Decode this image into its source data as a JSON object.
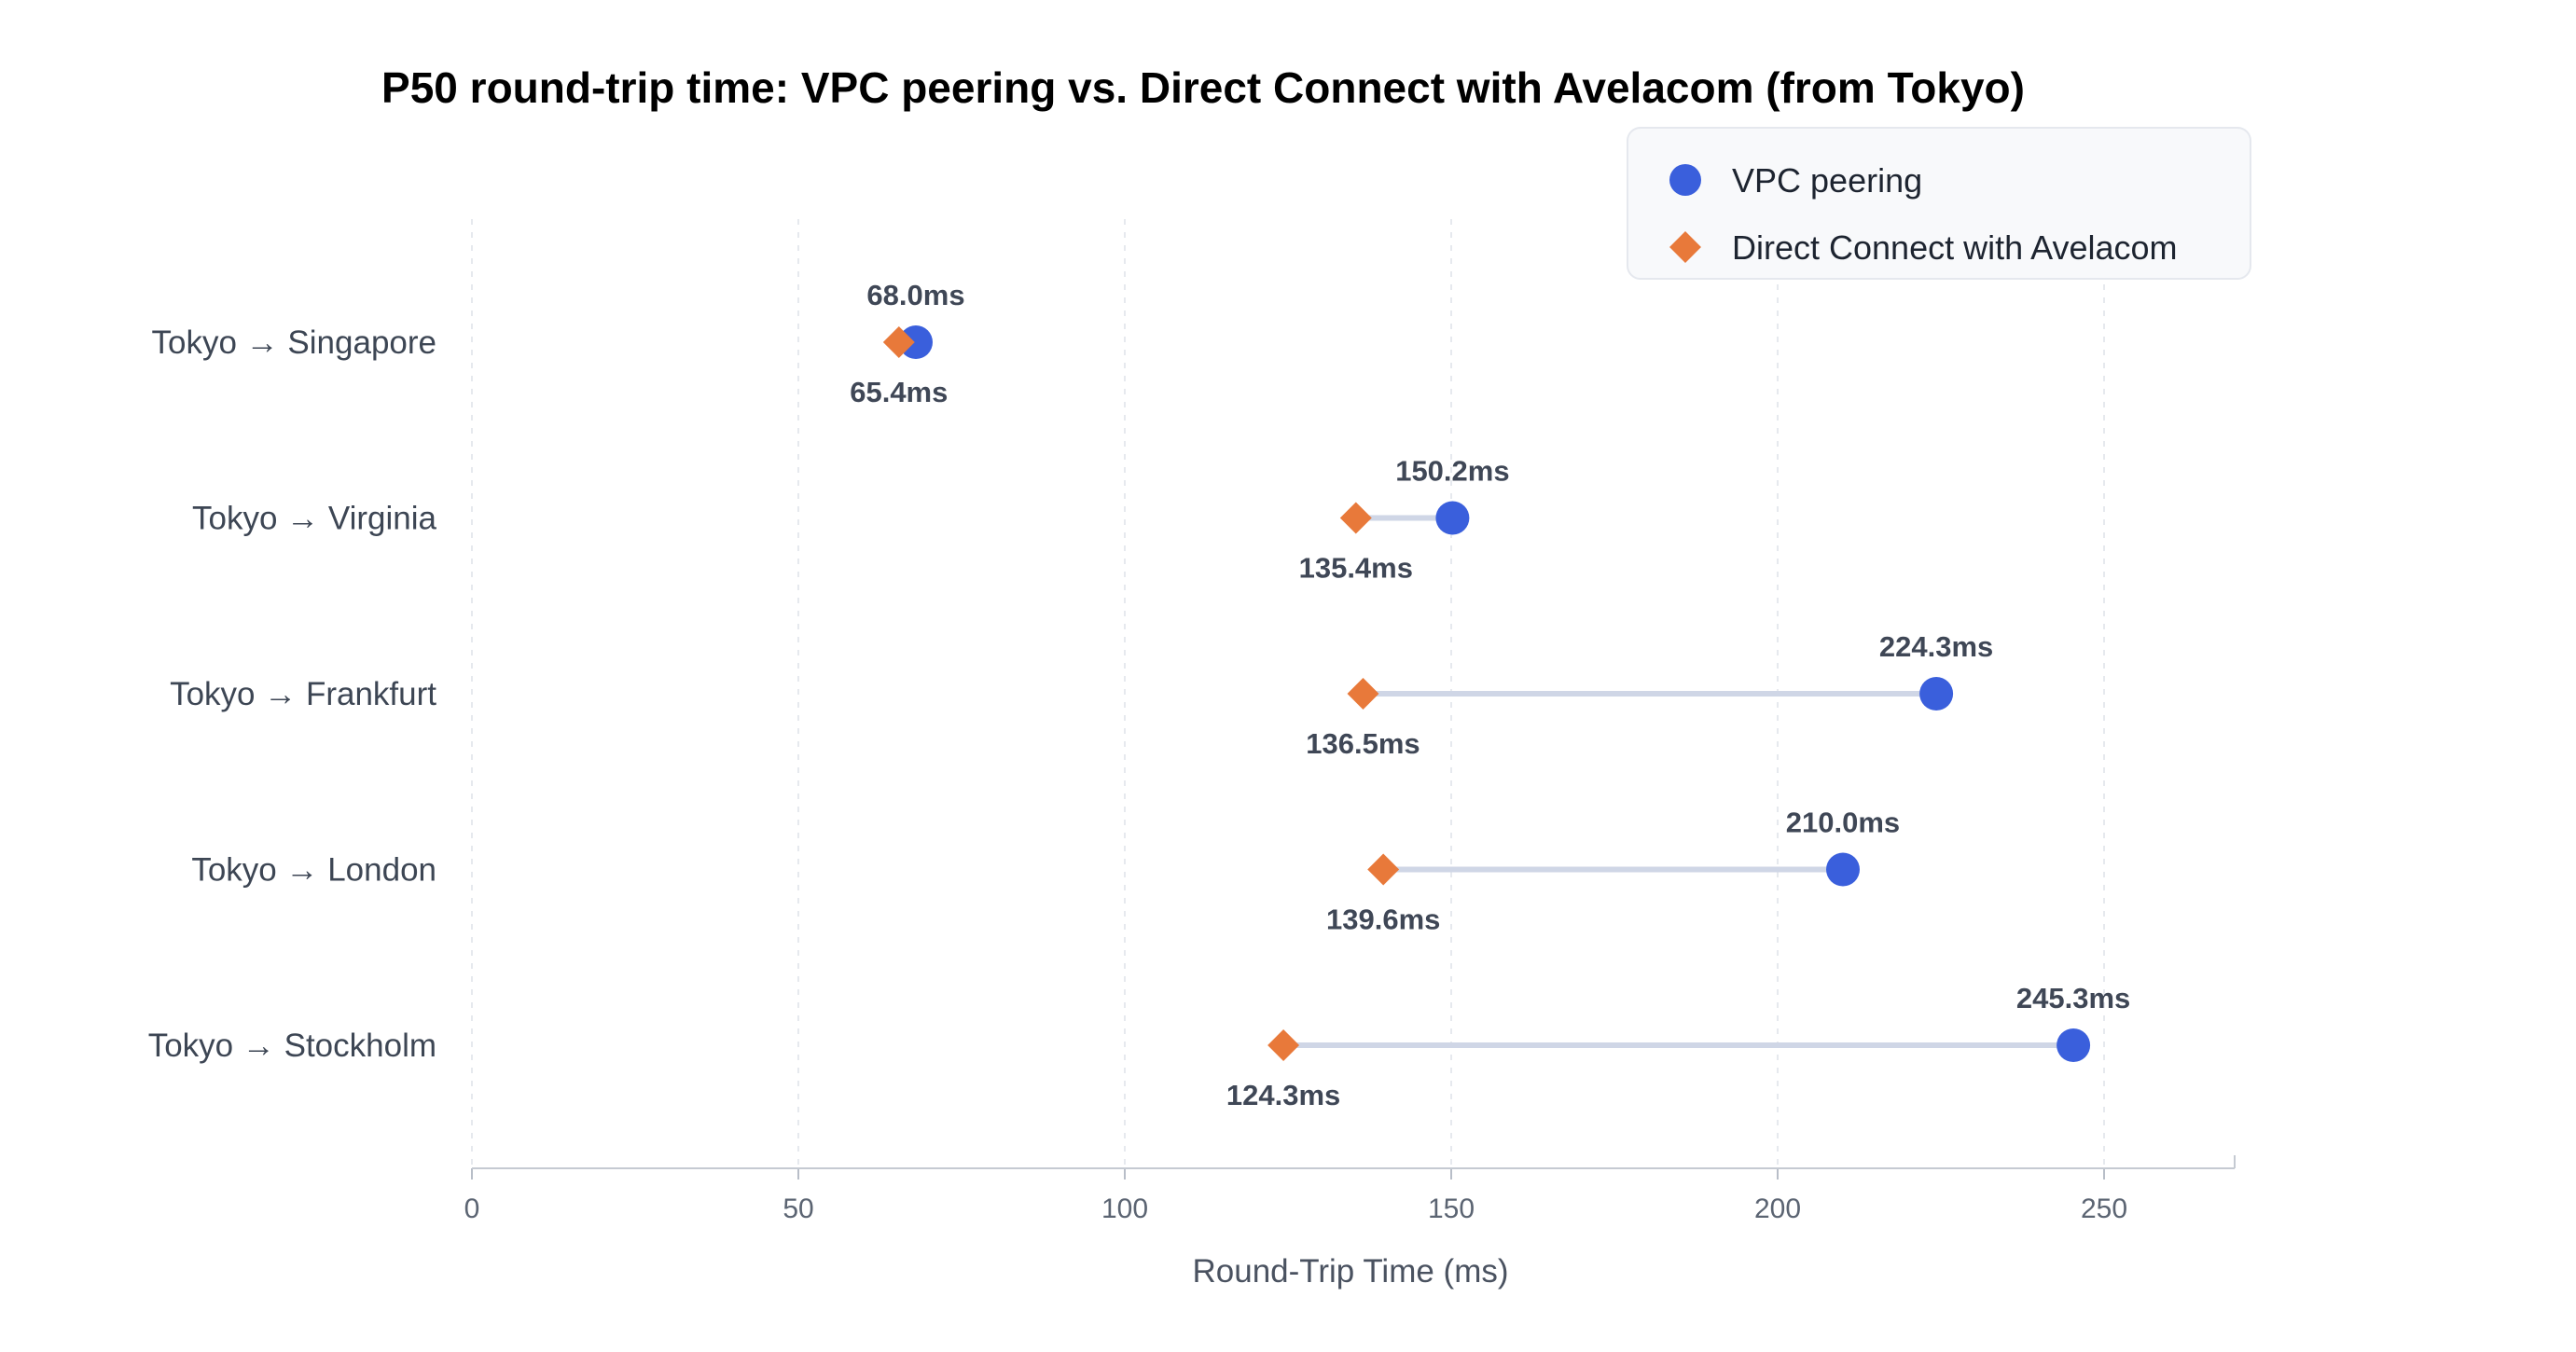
{
  "chart_data": {
    "type": "dumbbell",
    "title": "P50 round-trip time: VPC peering vs. Direct Connect with Avelacom (from Tokyo)",
    "xlabel": "Round-Trip Time (ms)",
    "ylabel": "",
    "xlim": [
      0,
      270
    ],
    "xticks": [
      0,
      50,
      100,
      150,
      200,
      250
    ],
    "grid": "vertical dashed",
    "legend_position": "top-right",
    "categories": [
      "Tokyo → Singapore",
      "Tokyo → Virginia",
      "Tokyo → Frankfurt",
      "Tokyo → London",
      "Tokyo → Stockholm"
    ],
    "series": [
      {
        "name": "VPC peering",
        "marker": "circle",
        "color": "#3a5fdc",
        "values": [
          68.0,
          150.2,
          224.3,
          210.0,
          245.3
        ],
        "labels": [
          "68.0ms",
          "150.2ms",
          "224.3ms",
          "210.0ms",
          "245.3ms"
        ]
      },
      {
        "name": "Direct Connect with Avelacom",
        "marker": "diamond",
        "color": "#e8793a",
        "values": [
          65.4,
          135.4,
          136.5,
          139.6,
          124.3
        ],
        "labels": [
          "65.4ms",
          "135.4ms",
          "136.5ms",
          "139.6ms",
          "124.3ms"
        ]
      }
    ]
  }
}
